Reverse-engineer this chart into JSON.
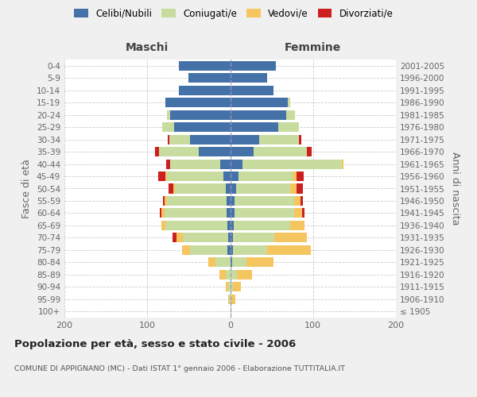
{
  "age_groups": [
    "100+",
    "95-99",
    "90-94",
    "85-89",
    "80-84",
    "75-79",
    "70-74",
    "65-69",
    "60-64",
    "55-59",
    "50-54",
    "45-49",
    "40-44",
    "35-39",
    "30-34",
    "25-29",
    "20-24",
    "15-19",
    "10-14",
    "5-9",
    "0-4"
  ],
  "birth_years": [
    "≤ 1905",
    "1906-1910",
    "1911-1915",
    "1916-1920",
    "1921-1925",
    "1926-1930",
    "1931-1935",
    "1936-1940",
    "1941-1945",
    "1946-1950",
    "1951-1955",
    "1956-1960",
    "1961-1965",
    "1966-1970",
    "1971-1975",
    "1976-1980",
    "1981-1985",
    "1986-1990",
    "1991-1995",
    "1996-2000",
    "2001-2005"
  ],
  "male_celibi": [
    0,
    0,
    0,
    0,
    0,
    3,
    2,
    3,
    4,
    4,
    5,
    8,
    12,
    38,
    48,
    68,
    72,
    78,
    62,
    50,
    62
  ],
  "male_coniugati": [
    0,
    1,
    2,
    5,
    18,
    45,
    55,
    75,
    75,
    72,
    62,
    68,
    60,
    48,
    25,
    14,
    4,
    0,
    0,
    0,
    0
  ],
  "male_vedovi": [
    0,
    1,
    3,
    8,
    8,
    10,
    8,
    5,
    4,
    3,
    2,
    2,
    0,
    0,
    0,
    0,
    0,
    0,
    0,
    0,
    0
  ],
  "male_divorziati": [
    0,
    0,
    0,
    0,
    0,
    0,
    5,
    0,
    2,
    2,
    5,
    9,
    5,
    5,
    2,
    0,
    0,
    0,
    0,
    0,
    0
  ],
  "female_celibi": [
    0,
    0,
    0,
    0,
    2,
    3,
    3,
    4,
    5,
    5,
    7,
    10,
    15,
    28,
    35,
    58,
    68,
    70,
    52,
    45,
    55
  ],
  "female_coniugati": [
    0,
    1,
    3,
    8,
    18,
    42,
    50,
    68,
    72,
    72,
    65,
    65,
    120,
    65,
    48,
    25,
    10,
    2,
    0,
    0,
    0
  ],
  "female_vedovi": [
    1,
    5,
    10,
    18,
    32,
    52,
    40,
    18,
    10,
    8,
    8,
    5,
    2,
    0,
    0,
    0,
    0,
    0,
    0,
    0,
    0
  ],
  "female_divorziati": [
    0,
    0,
    0,
    0,
    0,
    0,
    0,
    0,
    3,
    3,
    8,
    9,
    0,
    5,
    3,
    0,
    0,
    0,
    0,
    0,
    0
  ],
  "color_celibi": "#4472a8",
  "color_coniugati": "#c8dca0",
  "color_vedovi": "#f5c560",
  "color_divorziati": "#cc1f1f",
  "title": "Popolazione per età, sesso e stato civile - 2006",
  "subtitle": "COMUNE DI APPIGNANO (MC) - Dati ISTAT 1° gennaio 2006 - Elaborazione TUTTITALIA.IT",
  "label_maschi": "Maschi",
  "label_femmine": "Femmine",
  "ylabel_left": "Fasce di età",
  "ylabel_right": "Anni di nascita",
  "xlim": 200,
  "bg_color": "#f0f0f0",
  "plot_bg": "#ffffff"
}
